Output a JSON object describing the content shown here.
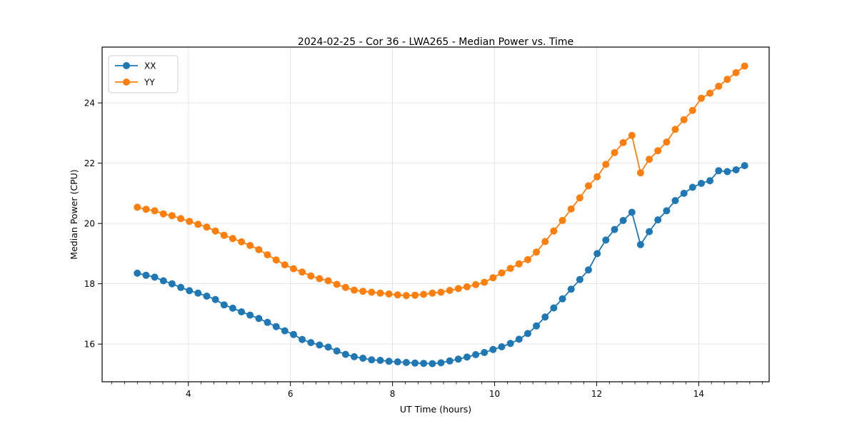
{
  "figure": {
    "background": "#ffffff",
    "spine_color": "#000000",
    "grid_color": "#e6e6e6"
  },
  "chart_data": {
    "type": "line",
    "title": "2024-02-25 - Cor 36 - LWA265 - Median Power vs. Time",
    "xlabel": "UT Time (hours)",
    "ylabel": "Median Power (CPU)",
    "xlim": [
      2.31,
      15.38
    ],
    "ylim": [
      14.75,
      25.85
    ],
    "x_major_ticks": [
      4,
      6,
      8,
      10,
      12,
      14
    ],
    "x_minor_step": 0.25,
    "y_major_ticks": [
      16,
      18,
      20,
      22,
      24
    ],
    "grid": true,
    "legend": {
      "position": "upper left",
      "entries": [
        "XX",
        "YY"
      ]
    },
    "x_start": 3.0,
    "x_step": 0.17,
    "n_points": 71,
    "series": [
      {
        "name": "XX",
        "color": "#1f77b4",
        "values": [
          18.35,
          18.28,
          18.22,
          18.1,
          18.0,
          17.88,
          17.77,
          17.69,
          17.59,
          17.48,
          17.3,
          17.19,
          17.07,
          16.96,
          16.85,
          16.72,
          16.58,
          16.44,
          16.32,
          16.15,
          16.05,
          15.97,
          15.9,
          15.77,
          15.66,
          15.58,
          15.53,
          15.48,
          15.46,
          15.43,
          15.41,
          15.39,
          15.37,
          15.36,
          15.35,
          15.38,
          15.44,
          15.5,
          15.57,
          15.65,
          15.72,
          15.82,
          15.91,
          16.02,
          16.16,
          16.35,
          16.6,
          16.9,
          17.2,
          17.5,
          17.82,
          18.14,
          18.46,
          19.0,
          19.45,
          19.8,
          20.1,
          20.37,
          19.3,
          19.73,
          20.12,
          20.42,
          20.76,
          21.0,
          21.2,
          21.33,
          21.42,
          21.75,
          21.72,
          21.78,
          21.92
        ]
      },
      {
        "name": "YY",
        "color": "#ff7f0e",
        "values": [
          20.54,
          20.47,
          20.42,
          20.32,
          20.26,
          20.16,
          20.07,
          19.97,
          19.88,
          19.75,
          19.61,
          19.5,
          19.39,
          19.27,
          19.13,
          18.96,
          18.79,
          18.63,
          18.5,
          18.39,
          18.26,
          18.17,
          18.1,
          17.98,
          17.88,
          17.79,
          17.75,
          17.72,
          17.69,
          17.66,
          17.63,
          17.61,
          17.62,
          17.65,
          17.69,
          17.72,
          17.78,
          17.84,
          17.9,
          17.97,
          18.05,
          18.2,
          18.36,
          18.51,
          18.66,
          18.8,
          19.05,
          19.4,
          19.75,
          20.1,
          20.48,
          20.85,
          21.25,
          21.55,
          21.96,
          22.35,
          22.68,
          22.92,
          21.68,
          22.13,
          22.41,
          22.7,
          23.12,
          23.44,
          23.75,
          24.15,
          24.32,
          24.55,
          24.78,
          25.0,
          25.22
        ]
      }
    ]
  }
}
